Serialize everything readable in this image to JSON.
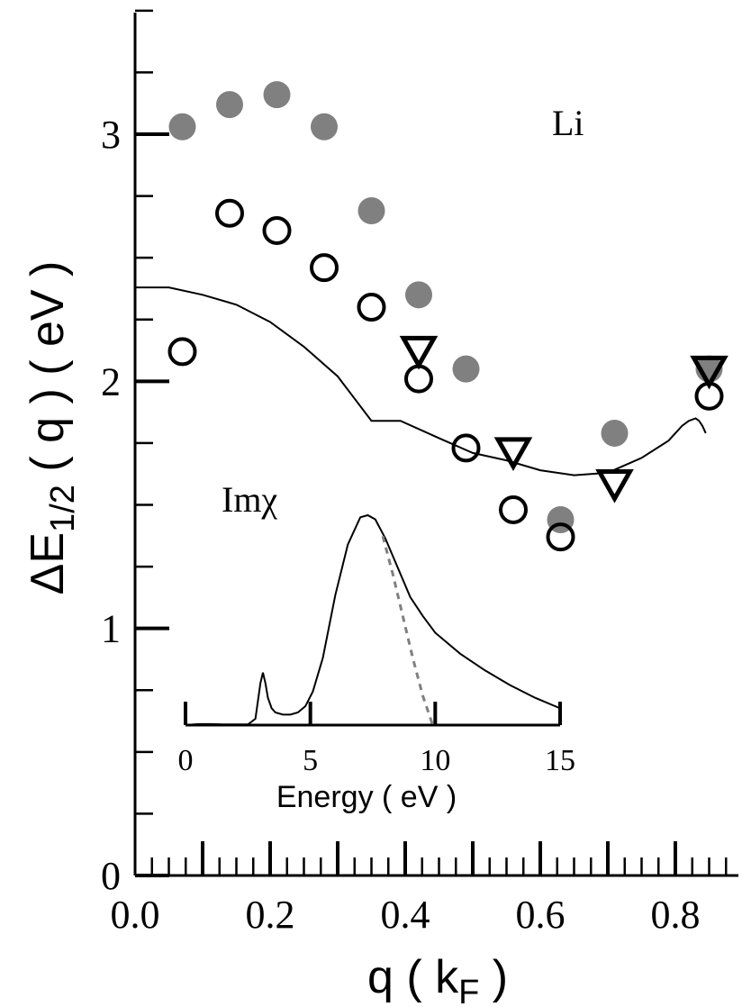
{
  "chart_data": [
    {
      "type": "scatter",
      "title": "",
      "annotation": "Li",
      "ylabel": {
        "main": "ΔE",
        "sub": "1/2",
        "rest": " ( q ) ( eV )"
      },
      "xlabel": {
        "main": "q ( k",
        "sub": "F",
        "rest": " )"
      },
      "xlim": [
        0.0,
        0.9
      ],
      "ylim": [
        0.0,
        3.5
      ],
      "xticks": [
        {
          "v": 0.0,
          "label": "0.0"
        },
        {
          "v": 0.2,
          "label": "0.2"
        },
        {
          "v": 0.4,
          "label": "0.4"
        },
        {
          "v": 0.6,
          "label": "0.6"
        },
        {
          "v": 0.8,
          "label": "0.8"
        }
      ],
      "yticks": [
        {
          "v": 0,
          "label": "0"
        },
        {
          "v": 1,
          "label": "1"
        },
        {
          "v": 2,
          "label": "2"
        },
        {
          "v": 3,
          "label": "3"
        }
      ],
      "series": [
        {
          "marker": "filled-circle",
          "color": "#808080",
          "x": [
            0.07,
            0.14,
            0.21,
            0.28,
            0.35,
            0.42,
            0.49,
            0.63,
            0.71,
            0.85
          ],
          "y": [
            3.03,
            3.12,
            3.16,
            3.03,
            2.69,
            2.35,
            2.05,
            1.44,
            1.79,
            2.05
          ]
        },
        {
          "marker": "open-circle",
          "color": "#000000",
          "x": [
            0.07,
            0.14,
            0.21,
            0.28,
            0.35,
            0.42,
            0.49,
            0.56,
            0.63,
            0.85
          ],
          "y": [
            2.12,
            2.68,
            2.61,
            2.46,
            2.3,
            2.01,
            1.73,
            1.48,
            1.37,
            1.94
          ]
        },
        {
          "marker": "open-triangle-down",
          "color": "#000000",
          "x": [
            0.42,
            0.56,
            0.71,
            0.85
          ],
          "y": [
            2.12,
            1.71,
            1.58,
            2.04
          ]
        },
        {
          "marker": "line",
          "color": "#000000",
          "x": [
            0.0,
            0.05,
            0.1,
            0.15,
            0.2,
            0.25,
            0.3,
            0.35,
            0.393,
            0.45,
            0.5,
            0.55,
            0.6,
            0.65,
            0.7,
            0.75,
            0.79,
            0.8,
            0.81,
            0.82,
            0.83,
            0.835,
            0.84,
            0.845
          ],
          "y": [
            2.38,
            2.38,
            2.35,
            2.31,
            2.24,
            2.14,
            2.02,
            1.84,
            1.84,
            1.77,
            1.71,
            1.68,
            1.64,
            1.62,
            1.63,
            1.69,
            1.76,
            1.79,
            1.82,
            1.84,
            1.85,
            1.84,
            1.82,
            1.79
          ]
        }
      ]
    },
    {
      "type": "line",
      "title": "Imχ",
      "xlabel": "Energy ( eV )",
      "ylabel": "",
      "xlim": [
        0,
        15
      ],
      "ylim": [
        0,
        1
      ],
      "xticks": [
        {
          "v": 0,
          "label": "0"
        },
        {
          "v": 5,
          "label": "5"
        },
        {
          "v": 10,
          "label": "10"
        },
        {
          "v": 15,
          "label": "15"
        }
      ],
      "series": [
        {
          "style": "solid",
          "color": "#000000",
          "x": [
            0,
            0.5,
            1,
            1.5,
            2,
            2.5,
            2.8,
            3.0,
            3.1,
            3.2,
            3.3,
            3.45,
            3.6,
            3.9,
            4.2,
            4.5,
            4.8,
            5.1,
            5.5,
            6.0,
            6.5,
            7.0,
            7.3,
            7.6,
            8.0,
            8.5,
            9.0,
            9.5,
            10,
            11,
            12,
            13,
            14,
            15
          ],
          "y": [
            0.0,
            0.005,
            0.005,
            0.003,
            0.003,
            0.003,
            0.03,
            0.2,
            0.25,
            0.2,
            0.13,
            0.08,
            0.06,
            0.05,
            0.05,
            0.06,
            0.09,
            0.16,
            0.32,
            0.62,
            0.86,
            0.99,
            1.0,
            0.98,
            0.89,
            0.75,
            0.61,
            0.52,
            0.44,
            0.34,
            0.26,
            0.19,
            0.13,
            0.08
          ]
        },
        {
          "style": "dashed",
          "color": "#808080",
          "x": [
            7.9,
            8.3,
            8.7,
            9.1,
            9.5,
            9.9
          ],
          "y": [
            0.9,
            0.72,
            0.52,
            0.32,
            0.14,
            0.0
          ]
        }
      ]
    }
  ]
}
